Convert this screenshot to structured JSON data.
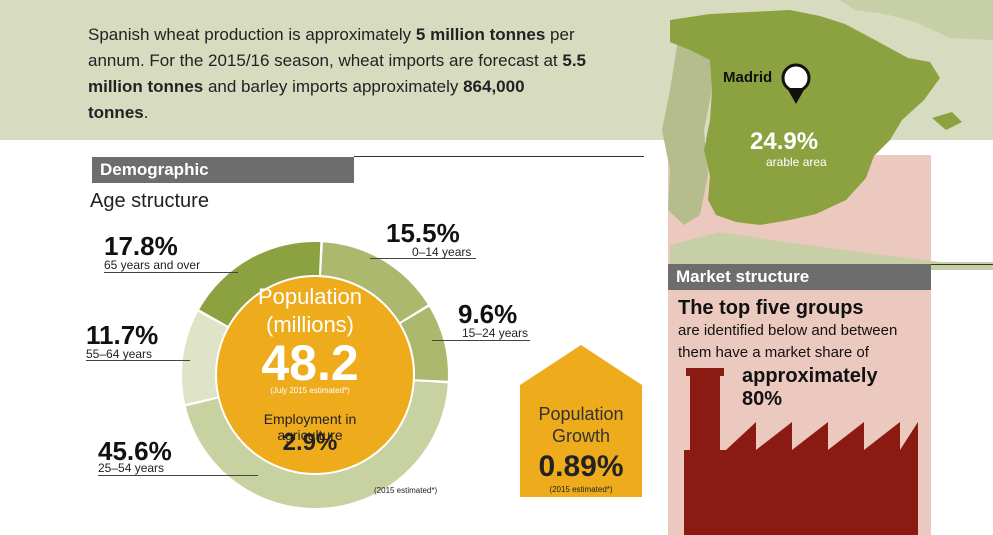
{
  "intro": {
    "t1": "Spanish wheat production is approximately ",
    "b1": "5 million tonnes",
    "t2": " per annum. For the 2015/16 season, wheat imports are forecast at ",
    "b2": "5.5 million tonnes",
    "t3": " and barley imports approximately ",
    "b3": "864,000 tonnes",
    "t4": "."
  },
  "map": {
    "city": "Madrid",
    "arable_value": "24.9%",
    "arable_label": "arable area"
  },
  "demographic": {
    "section_title": "Demographic",
    "age_title": "Age structure",
    "segments": [
      {
        "value": "15.5%",
        "label": "0–14 years",
        "share": 15.5
      },
      {
        "value": "9.6%",
        "label": "15–24 years",
        "share": 9.6
      },
      {
        "value": "45.6%",
        "label": "25–54 years",
        "share": 45.6
      },
      {
        "value": "11.7%",
        "label": "55–64 years",
        "share": 11.7
      },
      {
        "value": "17.8%",
        "label": "65 years and over",
        "share": 17.8
      }
    ],
    "population_label": "Population",
    "population_unit": "(millions)",
    "population_value": "48.2",
    "population_note": "(July 2015 estimated*)",
    "employment_label": "Employment in agriculture",
    "employment_value": "2.9%",
    "donut_note": "(2015 estimated*)"
  },
  "growth": {
    "label_line1": "Population",
    "label_line2": "Growth",
    "value": "0.89%",
    "note": "(2015 estimated*)"
  },
  "market": {
    "section_title": "Market structure",
    "headline": "The top five groups",
    "line1": "are identified below and between",
    "line2": "them have a market share of",
    "emph1": "approximately",
    "emph2": "80%"
  },
  "colors": {
    "olive_dark": "#8ca13f",
    "olive_mid": "#abb86d",
    "olive_light": "#c8d1a0",
    "olive_pale": "#dfe3c7",
    "orange": "#eeab1c",
    "maroon": "#8b1a12",
    "pink": "#ecc9bf",
    "grey_bar": "#6d6d6d"
  }
}
